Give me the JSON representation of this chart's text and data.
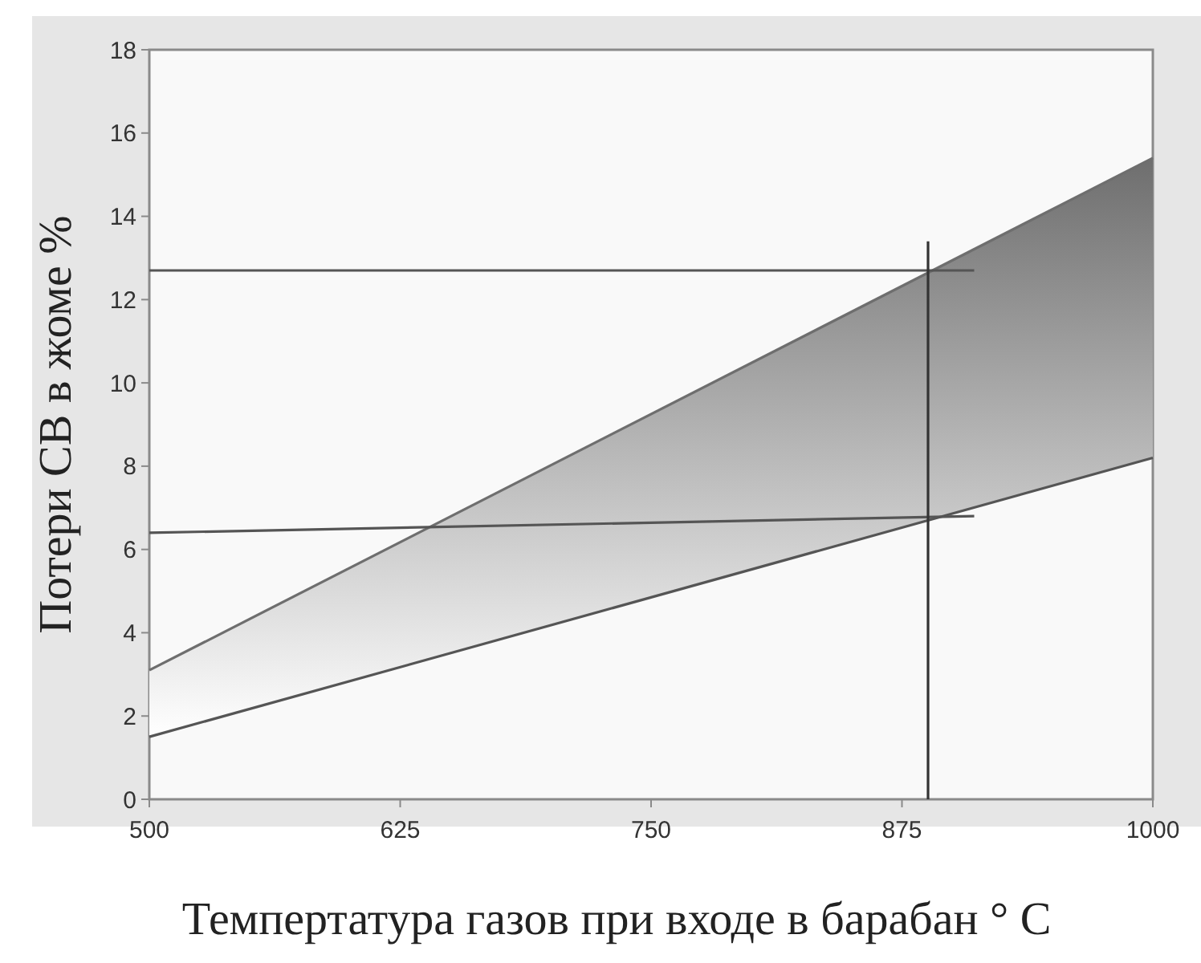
{
  "chart_data": {
    "type": "line",
    "xlabel": "Темпертатура газов при входе в барабан ° С",
    "ylabel": "Потери СВ в жоме %",
    "x": [
      500,
      1000
    ],
    "series": [
      {
        "type": "area",
        "color": "#6e6e6e",
        "values": [
          3.1,
          15.4
        ]
      },
      {
        "color": "#555555",
        "values": [
          1.5,
          8.2
        ]
      },
      {
        "color": "#555555",
        "x": [
          500,
          911
        ],
        "values": [
          12.7,
          12.7
        ]
      },
      {
        "color": "#555555",
        "x": [
          500,
          911
        ],
        "values": [
          6.4,
          6.8
        ]
      },
      {
        "color": "#333333",
        "x": [
          888,
          888
        ],
        "values": [
          0,
          13.4
        ]
      }
    ],
    "xlim": [
      500,
      1000
    ],
    "xticks": [
      500,
      625,
      750,
      875,
      1000
    ],
    "ylim": [
      0,
      18
    ],
    "yticks": [
      0,
      2,
      4,
      6,
      8,
      10,
      12,
      14,
      16,
      18
    ],
    "marker": "none",
    "line_style": "solid"
  }
}
